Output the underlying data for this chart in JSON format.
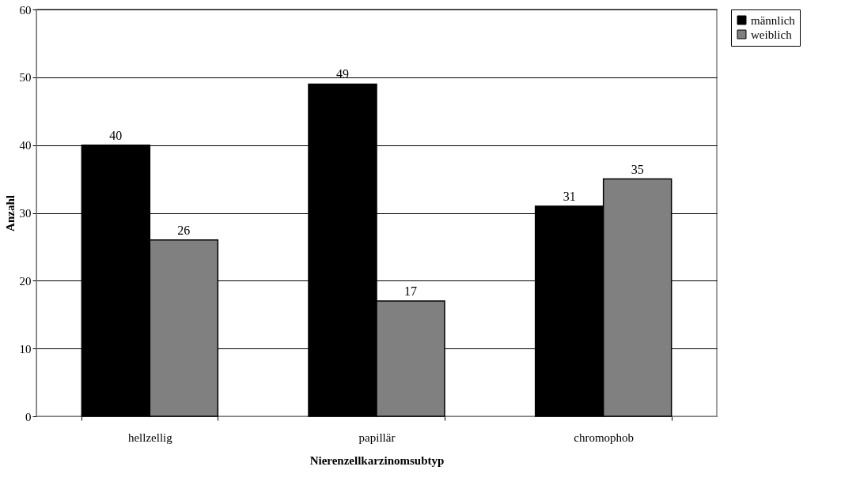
{
  "chart_data": {
    "type": "bar",
    "xlabel": "Nierenzellkarzinomsubtyp",
    "ylabel": "Anzahl",
    "categories": [
      "hellzellig",
      "papillär",
      "chromophob"
    ],
    "series": [
      {
        "name": "männlich",
        "color": "#000000",
        "values": [
          40,
          49,
          31
        ]
      },
      {
        "name": "weiblich",
        "color": "#808080",
        "values": [
          26,
          17,
          35
        ]
      }
    ],
    "ylim": [
      0,
      60
    ],
    "yticks": [
      0,
      10,
      20,
      30,
      40,
      50,
      60
    ],
    "grid": "y",
    "legend": "right",
    "data_labels": true
  }
}
